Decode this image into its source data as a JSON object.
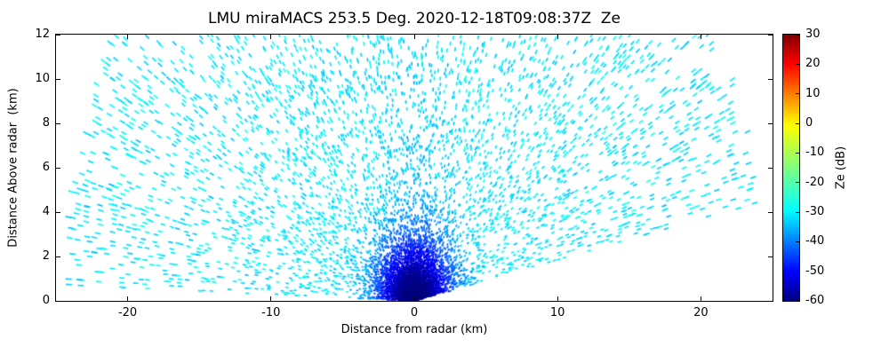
{
  "chart_data": {
    "type": "scatter",
    "title": "LMU miraMACS 253.5 Deg. 2020-12-18T09:08:37Z  Ze",
    "xlabel": "Distance from radar (km)",
    "ylabel": "Distance Above radar  (km)",
    "xlim": [
      -25,
      25
    ],
    "ylim": [
      0,
      12
    ],
    "x_ticks": [
      -20,
      -10,
      0,
      10,
      20
    ],
    "y_ticks": [
      0,
      2,
      4,
      6,
      8,
      10,
      12
    ],
    "grid": false,
    "legend": "none",
    "colorbar": {
      "label": "Ze (dB)",
      "vmin": -60,
      "vmax": 30,
      "ticks": [
        30,
        20,
        10,
        0,
        -10,
        -20,
        -30,
        -40,
        -50,
        -60
      ],
      "colormap": "jet",
      "stops": [
        [
          0,
          "#000080"
        ],
        [
          0.11,
          "#0000ff"
        ],
        [
          0.34,
          "#00ffff"
        ],
        [
          0.5,
          "#80ff80"
        ],
        [
          0.66,
          "#ffff00"
        ],
        [
          0.89,
          "#ff0000"
        ],
        [
          1,
          "#800000"
        ]
      ]
    },
    "description": "RHI (range-height) fan of cloud-radar reflectivity speckle. Short range-gate dashes aligned along beams fanning from the radar at (0,0): elevation ~10.5 deg on the right through zenith to ~179 deg on the left, max range ~24.5 km (outer arc, clipped at 12 km height). Background speckle is mostly -33 to -23 dB (cyan); a dense low-level core within ~3 km of the radar reaches -60 to -40 dB (dark blue/blue).",
    "scan": {
      "seed": 7,
      "elev_min_deg": 10.5,
      "elev_max_deg": 178.8,
      "elev_step_deg": 0.55,
      "range_min_km": 0.15,
      "range_max_km": 24.5,
      "range_step_km": 0.085,
      "density_base": 0.085,
      "cluster_density": 0.55,
      "cluster_sigma_km": 2.2,
      "ze_base_db": -28,
      "ze_noise_db": 5,
      "cluster_ze_depth_db": 30,
      "cluster_ze_sigma_km": 2.8,
      "column_ze_depth_db": 6,
      "column_ze_sigma_km": 2.5
    }
  }
}
